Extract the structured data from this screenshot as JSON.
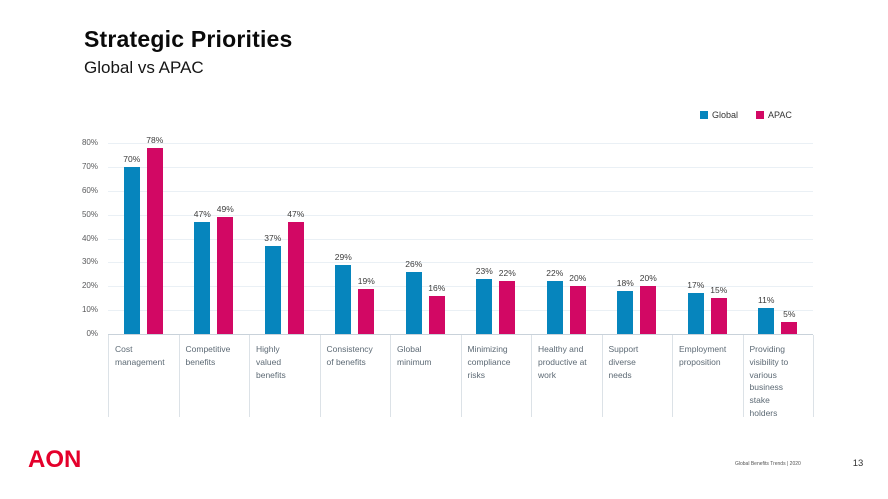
{
  "header": {
    "title": "Strategic Priorities",
    "subtitle": "Global vs APAC"
  },
  "chart_data": {
    "type": "bar",
    "title": "Strategic Priorities — Global vs APAC",
    "categories": [
      "Cost\nmanagement",
      "Competitive\nbenefits",
      "Highly\nvalued\nbenefits",
      "Consistency\nof benefits",
      "Global\nminimum",
      "Minimizing\ncompliance\nrisks",
      "Healthy and\nproductive at\nwork",
      "Support\ndiverse\nneeds",
      "Employment\nproposition",
      "Providing\nvisibility to\nvarious\nbusiness\nstake\nholders"
    ],
    "series": [
      {
        "name": "Global",
        "color": "#0685BD",
        "values": [
          70,
          47,
          37,
          29,
          26,
          23,
          22,
          18,
          17,
          11
        ]
      },
      {
        "name": "APAC",
        "color": "#D20864",
        "values": [
          78,
          49,
          47,
          19,
          16,
          22,
          20,
          20,
          15,
          5
        ]
      }
    ],
    "value_suffix": "%",
    "ylim": [
      0,
      80
    ],
    "yticks": [
      0,
      10,
      20,
      30,
      40,
      50,
      60,
      70,
      80
    ],
    "ytick_suffix": "%",
    "grid": "horizontal",
    "legend_position": "top-right"
  },
  "footer": {
    "logo": "AON",
    "doc_title": "Global Benefits Trends | 2020",
    "page_number": "13"
  },
  "colors": {
    "series_global": "#0685BD",
    "series_apac": "#D20864",
    "brand_red": "#E4002B",
    "gridline": "#EAF0F5",
    "axis_text": "#58595B",
    "category_text": "#5D6A75"
  }
}
